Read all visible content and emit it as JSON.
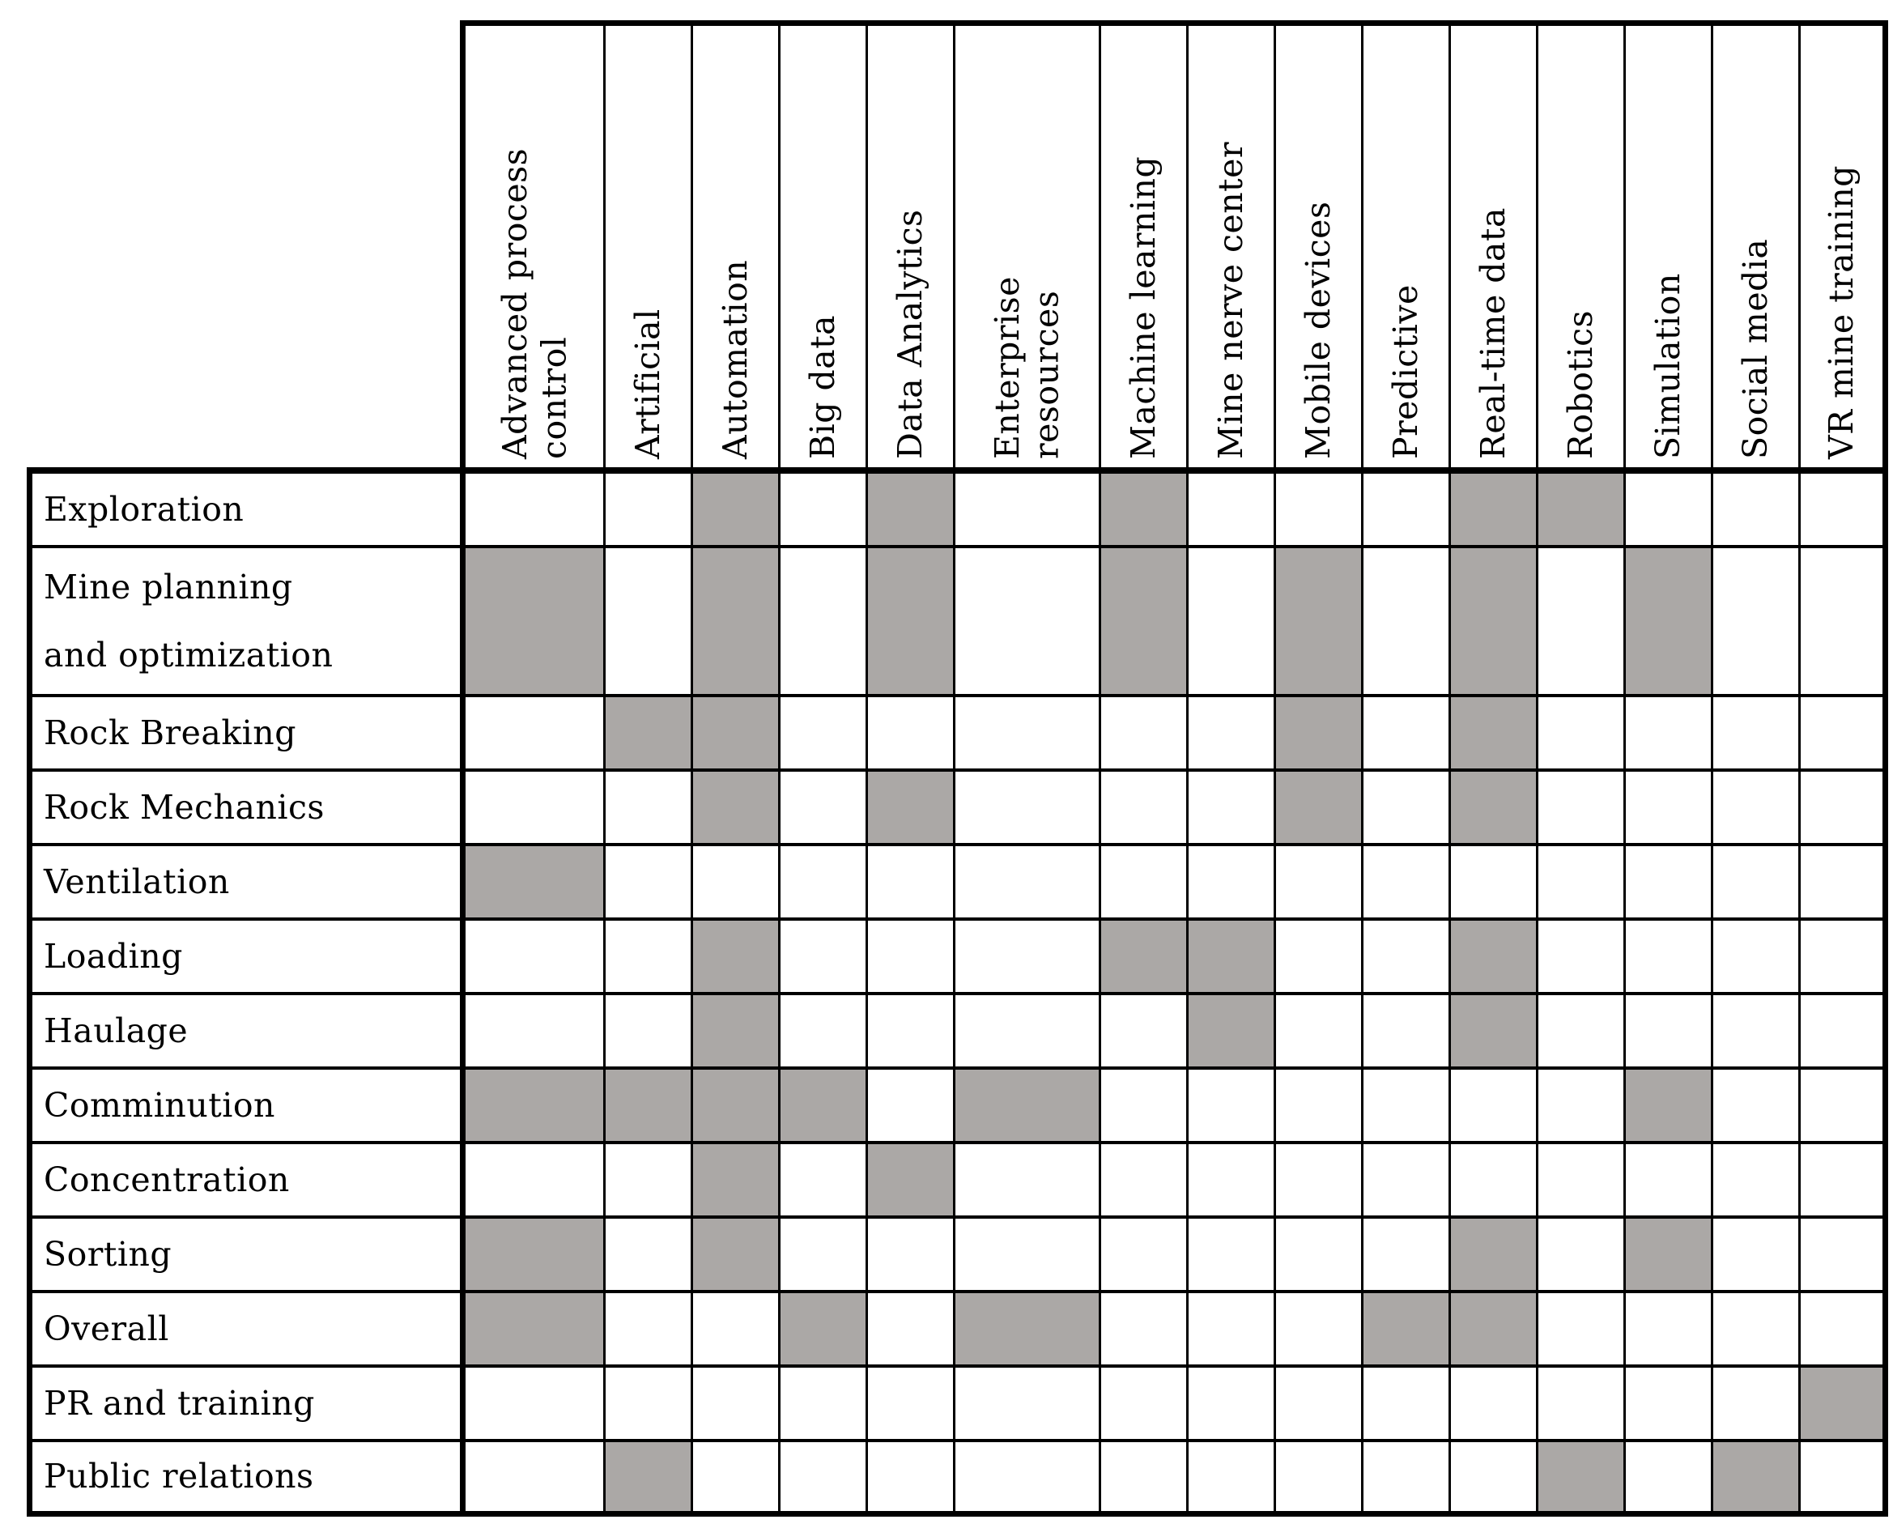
{
  "figure": {
    "background_color": "#ffffff",
    "border_color": "#000000",
    "shaded_cell_color": "#aba8a6",
    "empty_cell_color": "#ffffff"
  },
  "chart_data": {
    "type": "heatmap",
    "title": "",
    "x_categories": [
      "Advanced process control",
      "Artificial",
      "Automation",
      "Big data",
      "Data Analytics",
      "Enterprise resources",
      "Machine learning",
      "Mine nerve center",
      "Mobile devices",
      "Predictive",
      "Real-time data",
      "Robotics",
      "Simulation",
      "Social media",
      "VR mine training"
    ],
    "x_category_display": [
      "Advanced process\ncontrol",
      "Artificial",
      "Automation",
      "Big data",
      "Data Analytics",
      "Enterprise\nresources",
      "Machine learning",
      "Mine nerve center",
      "Mobile devices",
      "Predictive",
      "Real-time data",
      "Robotics",
      "Simulation",
      "Social media",
      "VR mine training"
    ],
    "y_categories": [
      "Exploration",
      "Mine planning and optimization",
      "Rock Breaking",
      "Rock Mechanics",
      "Ventilation",
      "Loading",
      "Haulage",
      "Comminution",
      "Concentration",
      "Sorting",
      "Overall",
      "PR and training",
      "Public relations"
    ],
    "y_category_display": [
      "Exploration",
      "Mine planning\nand optimization",
      "Rock Breaking",
      "Rock Mechanics",
      "Ventilation",
      "Loading",
      "Haulage",
      "Comminution",
      "Concentration",
      "Sorting",
      "Overall",
      "PR and training",
      "Public relations"
    ],
    "values": [
      [
        0,
        0,
        1,
        0,
        1,
        0,
        1,
        0,
        0,
        0,
        1,
        1,
        0,
        0,
        0
      ],
      [
        1,
        0,
        1,
        0,
        1,
        0,
        1,
        0,
        1,
        0,
        1,
        0,
        1,
        0,
        0
      ],
      [
        0,
        1,
        1,
        0,
        0,
        0,
        0,
        0,
        1,
        0,
        1,
        0,
        0,
        0,
        0
      ],
      [
        0,
        0,
        1,
        0,
        1,
        0,
        0,
        0,
        1,
        0,
        1,
        0,
        0,
        0,
        0
      ],
      [
        1,
        0,
        0,
        0,
        0,
        0,
        0,
        0,
        0,
        0,
        0,
        0,
        0,
        0,
        0
      ],
      [
        0,
        0,
        1,
        0,
        0,
        0,
        1,
        1,
        0,
        0,
        1,
        0,
        0,
        0,
        0
      ],
      [
        0,
        0,
        1,
        0,
        0,
        0,
        0,
        1,
        0,
        0,
        1,
        0,
        0,
        0,
        0
      ],
      [
        1,
        1,
        1,
        1,
        0,
        1,
        0,
        0,
        0,
        0,
        0,
        0,
        1,
        0,
        0
      ],
      [
        0,
        0,
        1,
        0,
        1,
        0,
        0,
        0,
        0,
        0,
        0,
        0,
        0,
        0,
        0
      ],
      [
        1,
        0,
        1,
        0,
        0,
        0,
        0,
        0,
        0,
        0,
        1,
        0,
        1,
        0,
        0
      ],
      [
        1,
        0,
        0,
        1,
        0,
        1,
        0,
        0,
        0,
        1,
        1,
        0,
        0,
        0,
        0
      ],
      [
        0,
        0,
        0,
        0,
        0,
        0,
        0,
        0,
        0,
        0,
        0,
        0,
        0,
        0,
        1
      ],
      [
        0,
        1,
        0,
        0,
        0,
        0,
        0,
        0,
        0,
        0,
        0,
        1,
        0,
        1,
        0
      ]
    ],
    "value_meaning": {
      "1": "shaded",
      "0": "blank"
    },
    "layout": {
      "grid": true,
      "legend": "none",
      "column_headers_rotated_90deg": true
    }
  }
}
